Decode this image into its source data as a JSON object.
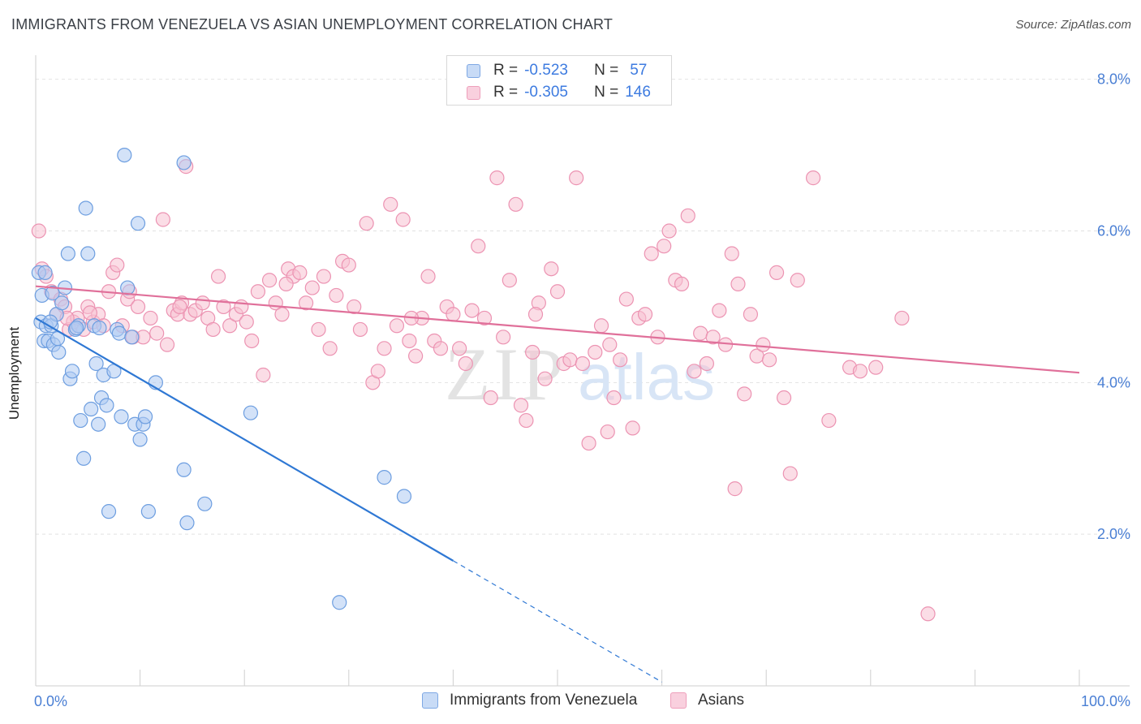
{
  "header": {
    "title": "IMMIGRANTS FROM VENEZUELA VS ASIAN UNEMPLOYMENT CORRELATION CHART",
    "source": "Source: ZipAtlas.com"
  },
  "legend": {
    "rows": [
      {
        "r_label": "R =",
        "r_value": "-0.523",
        "n_label": "N =",
        "n_value": "57"
      },
      {
        "r_label": "R =",
        "r_value": "-0.305",
        "n_label": "N =",
        "n_value": "146"
      }
    ]
  },
  "watermark": {
    "part1": "ZIP",
    "part2": "atlas"
  },
  "colors": {
    "series1_fill": "#aecbf2",
    "series1_stroke": "#6d9ee0",
    "series1_line": "#2f78d4",
    "series2_fill": "#f7c1d2",
    "series2_stroke": "#ec93b2",
    "series2_line": "#e0709a",
    "tick_text": "#4a7fd4"
  },
  "chart_data": {
    "type": "scatter",
    "title": "IMMIGRANTS FROM VENEZUELA VS ASIAN UNEMPLOYMENT CORRELATION CHART",
    "xlabel": "",
    "ylabel": "Unemployment",
    "xlim": [
      0,
      100
    ],
    "ylim": [
      0,
      8.0
    ],
    "x_tick_labels": [
      {
        "value": 0,
        "label": "0.0%"
      },
      {
        "value": 100,
        "label": "100.0%"
      }
    ],
    "y_tick_labels": [
      {
        "value": 2.0,
        "label": "2.0%"
      },
      {
        "value": 4.0,
        "label": "4.0%"
      },
      {
        "value": 6.0,
        "label": "6.0%"
      },
      {
        "value": 8.0,
        "label": "8.0%"
      }
    ],
    "grid": true,
    "series": [
      {
        "name": "Immigrants from Venezuela",
        "color": "#6d9ee0",
        "trend": {
          "x_start": 0,
          "y_start": 4.85,
          "x_solid_end": 40,
          "x_end": 60,
          "y_end": 0.05
        },
        "points": [
          [
            0.3,
            5.45
          ],
          [
            0.5,
            4.8
          ],
          [
            0.6,
            5.15
          ],
          [
            0.8,
            4.55
          ],
          [
            1.0,
            4.75
          ],
          [
            1.2,
            4.55
          ],
          [
            1.5,
            4.75
          ],
          [
            1.7,
            4.5
          ],
          [
            2.0,
            4.9
          ],
          [
            2.2,
            4.4
          ],
          [
            2.5,
            5.05
          ],
          [
            2.8,
            5.25
          ],
          [
            3.1,
            5.7
          ],
          [
            3.3,
            4.05
          ],
          [
            3.5,
            4.15
          ],
          [
            3.8,
            4.7
          ],
          [
            4.1,
            4.75
          ],
          [
            4.3,
            3.5
          ],
          [
            4.6,
            3.0
          ],
          [
            4.8,
            6.3
          ],
          [
            5.0,
            5.7
          ],
          [
            5.3,
            3.65
          ],
          [
            5.6,
            4.75
          ],
          [
            5.8,
            4.25
          ],
          [
            6.0,
            3.45
          ],
          [
            6.3,
            3.8
          ],
          [
            6.5,
            4.1
          ],
          [
            6.8,
            3.7
          ],
          [
            7.0,
            2.3
          ],
          [
            7.5,
            4.15
          ],
          [
            7.8,
            4.7
          ],
          [
            8.0,
            4.65
          ],
          [
            8.2,
            3.55
          ],
          [
            8.5,
            7.0
          ],
          [
            8.8,
            5.25
          ],
          [
            9.2,
            4.6
          ],
          [
            9.5,
            3.45
          ],
          [
            9.8,
            6.1
          ],
          [
            10.0,
            3.25
          ],
          [
            10.3,
            3.45
          ],
          [
            10.5,
            3.55
          ],
          [
            10.8,
            2.3
          ],
          [
            11.5,
            4.0
          ],
          [
            14.2,
            2.85
          ],
          [
            14.5,
            2.15
          ],
          [
            14.2,
            6.9
          ],
          [
            16.2,
            2.4
          ],
          [
            20.6,
            3.6
          ],
          [
            33.4,
            2.75
          ],
          [
            35.3,
            2.5
          ],
          [
            29.1,
            1.1
          ],
          [
            1.4,
            4.8
          ],
          [
            3.9,
            4.72
          ],
          [
            2.1,
            4.58
          ],
          [
            0.9,
            5.45
          ],
          [
            6.1,
            4.72
          ],
          [
            1.6,
            5.18
          ]
        ]
      },
      {
        "name": "Asians",
        "color": "#ec93b2",
        "trend": {
          "x_start": 0,
          "y_start": 5.27,
          "x_end": 100,
          "y_end": 4.13
        },
        "points": [
          [
            0.3,
            6.0
          ],
          [
            0.6,
            5.5
          ],
          [
            1.0,
            5.4
          ],
          [
            1.5,
            5.2
          ],
          [
            2.0,
            4.9
          ],
          [
            2.4,
            5.1
          ],
          [
            2.8,
            5.0
          ],
          [
            3.2,
            4.7
          ],
          [
            3.6,
            4.8
          ],
          [
            4.0,
            4.85
          ],
          [
            4.6,
            4.7
          ],
          [
            5.0,
            5.0
          ],
          [
            5.5,
            4.8
          ],
          [
            6.0,
            4.9
          ],
          [
            6.5,
            4.75
          ],
          [
            7.0,
            5.2
          ],
          [
            7.4,
            5.45
          ],
          [
            7.8,
            5.55
          ],
          [
            8.3,
            4.75
          ],
          [
            8.8,
            5.1
          ],
          [
            9.3,
            4.6
          ],
          [
            9.8,
            5.0
          ],
          [
            10.3,
            4.6
          ],
          [
            11.0,
            4.85
          ],
          [
            11.6,
            4.65
          ],
          [
            12.2,
            6.15
          ],
          [
            12.6,
            4.5
          ],
          [
            13.2,
            4.95
          ],
          [
            13.6,
            4.9
          ],
          [
            14.0,
            5.05
          ],
          [
            14.4,
            6.85
          ],
          [
            14.8,
            4.9
          ],
          [
            15.3,
            4.95
          ],
          [
            16.0,
            5.05
          ],
          [
            16.5,
            4.85
          ],
          [
            17.0,
            4.7
          ],
          [
            17.5,
            5.4
          ],
          [
            18.0,
            5.0
          ],
          [
            18.6,
            4.75
          ],
          [
            19.2,
            4.9
          ],
          [
            19.7,
            5.0
          ],
          [
            20.2,
            4.8
          ],
          [
            20.7,
            4.55
          ],
          [
            21.3,
            5.2
          ],
          [
            21.8,
            4.1
          ],
          [
            22.4,
            5.35
          ],
          [
            23.0,
            5.05
          ],
          [
            23.6,
            4.9
          ],
          [
            24.2,
            5.5
          ],
          [
            24.7,
            5.4
          ],
          [
            25.3,
            5.45
          ],
          [
            25.9,
            5.05
          ],
          [
            26.5,
            5.25
          ],
          [
            27.1,
            4.7
          ],
          [
            27.6,
            5.4
          ],
          [
            28.2,
            4.45
          ],
          [
            28.8,
            5.15
          ],
          [
            29.4,
            5.6
          ],
          [
            30.0,
            5.55
          ],
          [
            30.5,
            5.0
          ],
          [
            31.1,
            4.7
          ],
          [
            31.7,
            6.1
          ],
          [
            32.3,
            4.0
          ],
          [
            32.8,
            4.15
          ],
          [
            33.4,
            4.45
          ],
          [
            34.0,
            6.35
          ],
          [
            34.6,
            4.75
          ],
          [
            35.2,
            6.15
          ],
          [
            35.8,
            4.55
          ],
          [
            36.4,
            4.35
          ],
          [
            37.0,
            4.85
          ],
          [
            37.6,
            5.4
          ],
          [
            38.2,
            4.55
          ],
          [
            38.8,
            4.45
          ],
          [
            39.4,
            5.0
          ],
          [
            40.0,
            4.9
          ],
          [
            40.6,
            4.45
          ],
          [
            41.2,
            4.25
          ],
          [
            41.8,
            4.95
          ],
          [
            42.4,
            5.8
          ],
          [
            43.0,
            4.85
          ],
          [
            43.6,
            3.8
          ],
          [
            44.2,
            6.7
          ],
          [
            44.8,
            4.6
          ],
          [
            45.4,
            5.35
          ],
          [
            46.0,
            6.35
          ],
          [
            46.5,
            3.7
          ],
          [
            47.0,
            3.5
          ],
          [
            47.6,
            4.4
          ],
          [
            48.2,
            5.05
          ],
          [
            48.8,
            4.05
          ],
          [
            49.4,
            5.5
          ],
          [
            50.0,
            5.2
          ],
          [
            50.6,
            4.25
          ],
          [
            51.2,
            4.3
          ],
          [
            51.8,
            6.7
          ],
          [
            52.4,
            4.25
          ],
          [
            53.0,
            3.2
          ],
          [
            53.6,
            4.4
          ],
          [
            54.2,
            4.75
          ],
          [
            54.8,
            3.35
          ],
          [
            55.4,
            3.8
          ],
          [
            56.0,
            4.3
          ],
          [
            56.6,
            5.1
          ],
          [
            57.2,
            3.4
          ],
          [
            57.8,
            4.85
          ],
          [
            58.4,
            4.9
          ],
          [
            59.0,
            5.7
          ],
          [
            59.6,
            4.6
          ],
          [
            60.2,
            5.8
          ],
          [
            60.7,
            6.0
          ],
          [
            61.3,
            5.35
          ],
          [
            61.9,
            5.3
          ],
          [
            62.5,
            6.2
          ],
          [
            63.1,
            4.15
          ],
          [
            63.7,
            4.65
          ],
          [
            64.3,
            4.25
          ],
          [
            64.9,
            4.6
          ],
          [
            65.5,
            4.95
          ],
          [
            66.1,
            4.5
          ],
          [
            66.7,
            5.7
          ],
          [
            67.3,
            5.3
          ],
          [
            67.9,
            3.85
          ],
          [
            68.5,
            4.9
          ],
          [
            69.1,
            4.35
          ],
          [
            69.7,
            4.5
          ],
          [
            70.3,
            4.3
          ],
          [
            71.0,
            5.45
          ],
          [
            71.7,
            3.8
          ],
          [
            72.3,
            2.8
          ],
          [
            73.0,
            5.35
          ],
          [
            74.5,
            6.7
          ],
          [
            76.0,
            3.5
          ],
          [
            78.0,
            4.2
          ],
          [
            80.5,
            4.2
          ],
          [
            79.0,
            4.15
          ],
          [
            83.0,
            4.85
          ],
          [
            85.5,
            0.95
          ],
          [
            67.0,
            2.6
          ],
          [
            3.0,
            4.85
          ],
          [
            5.2,
            4.92
          ],
          [
            9.0,
            5.2
          ],
          [
            13.8,
            5.0
          ],
          [
            24.0,
            5.3
          ],
          [
            36.0,
            4.85
          ],
          [
            47.9,
            4.9
          ],
          [
            55.0,
            4.5
          ]
        ]
      }
    ]
  },
  "bottom_legend": {
    "items": [
      {
        "label": "Immigrants from Venezuela"
      },
      {
        "label": "Asians"
      }
    ]
  }
}
